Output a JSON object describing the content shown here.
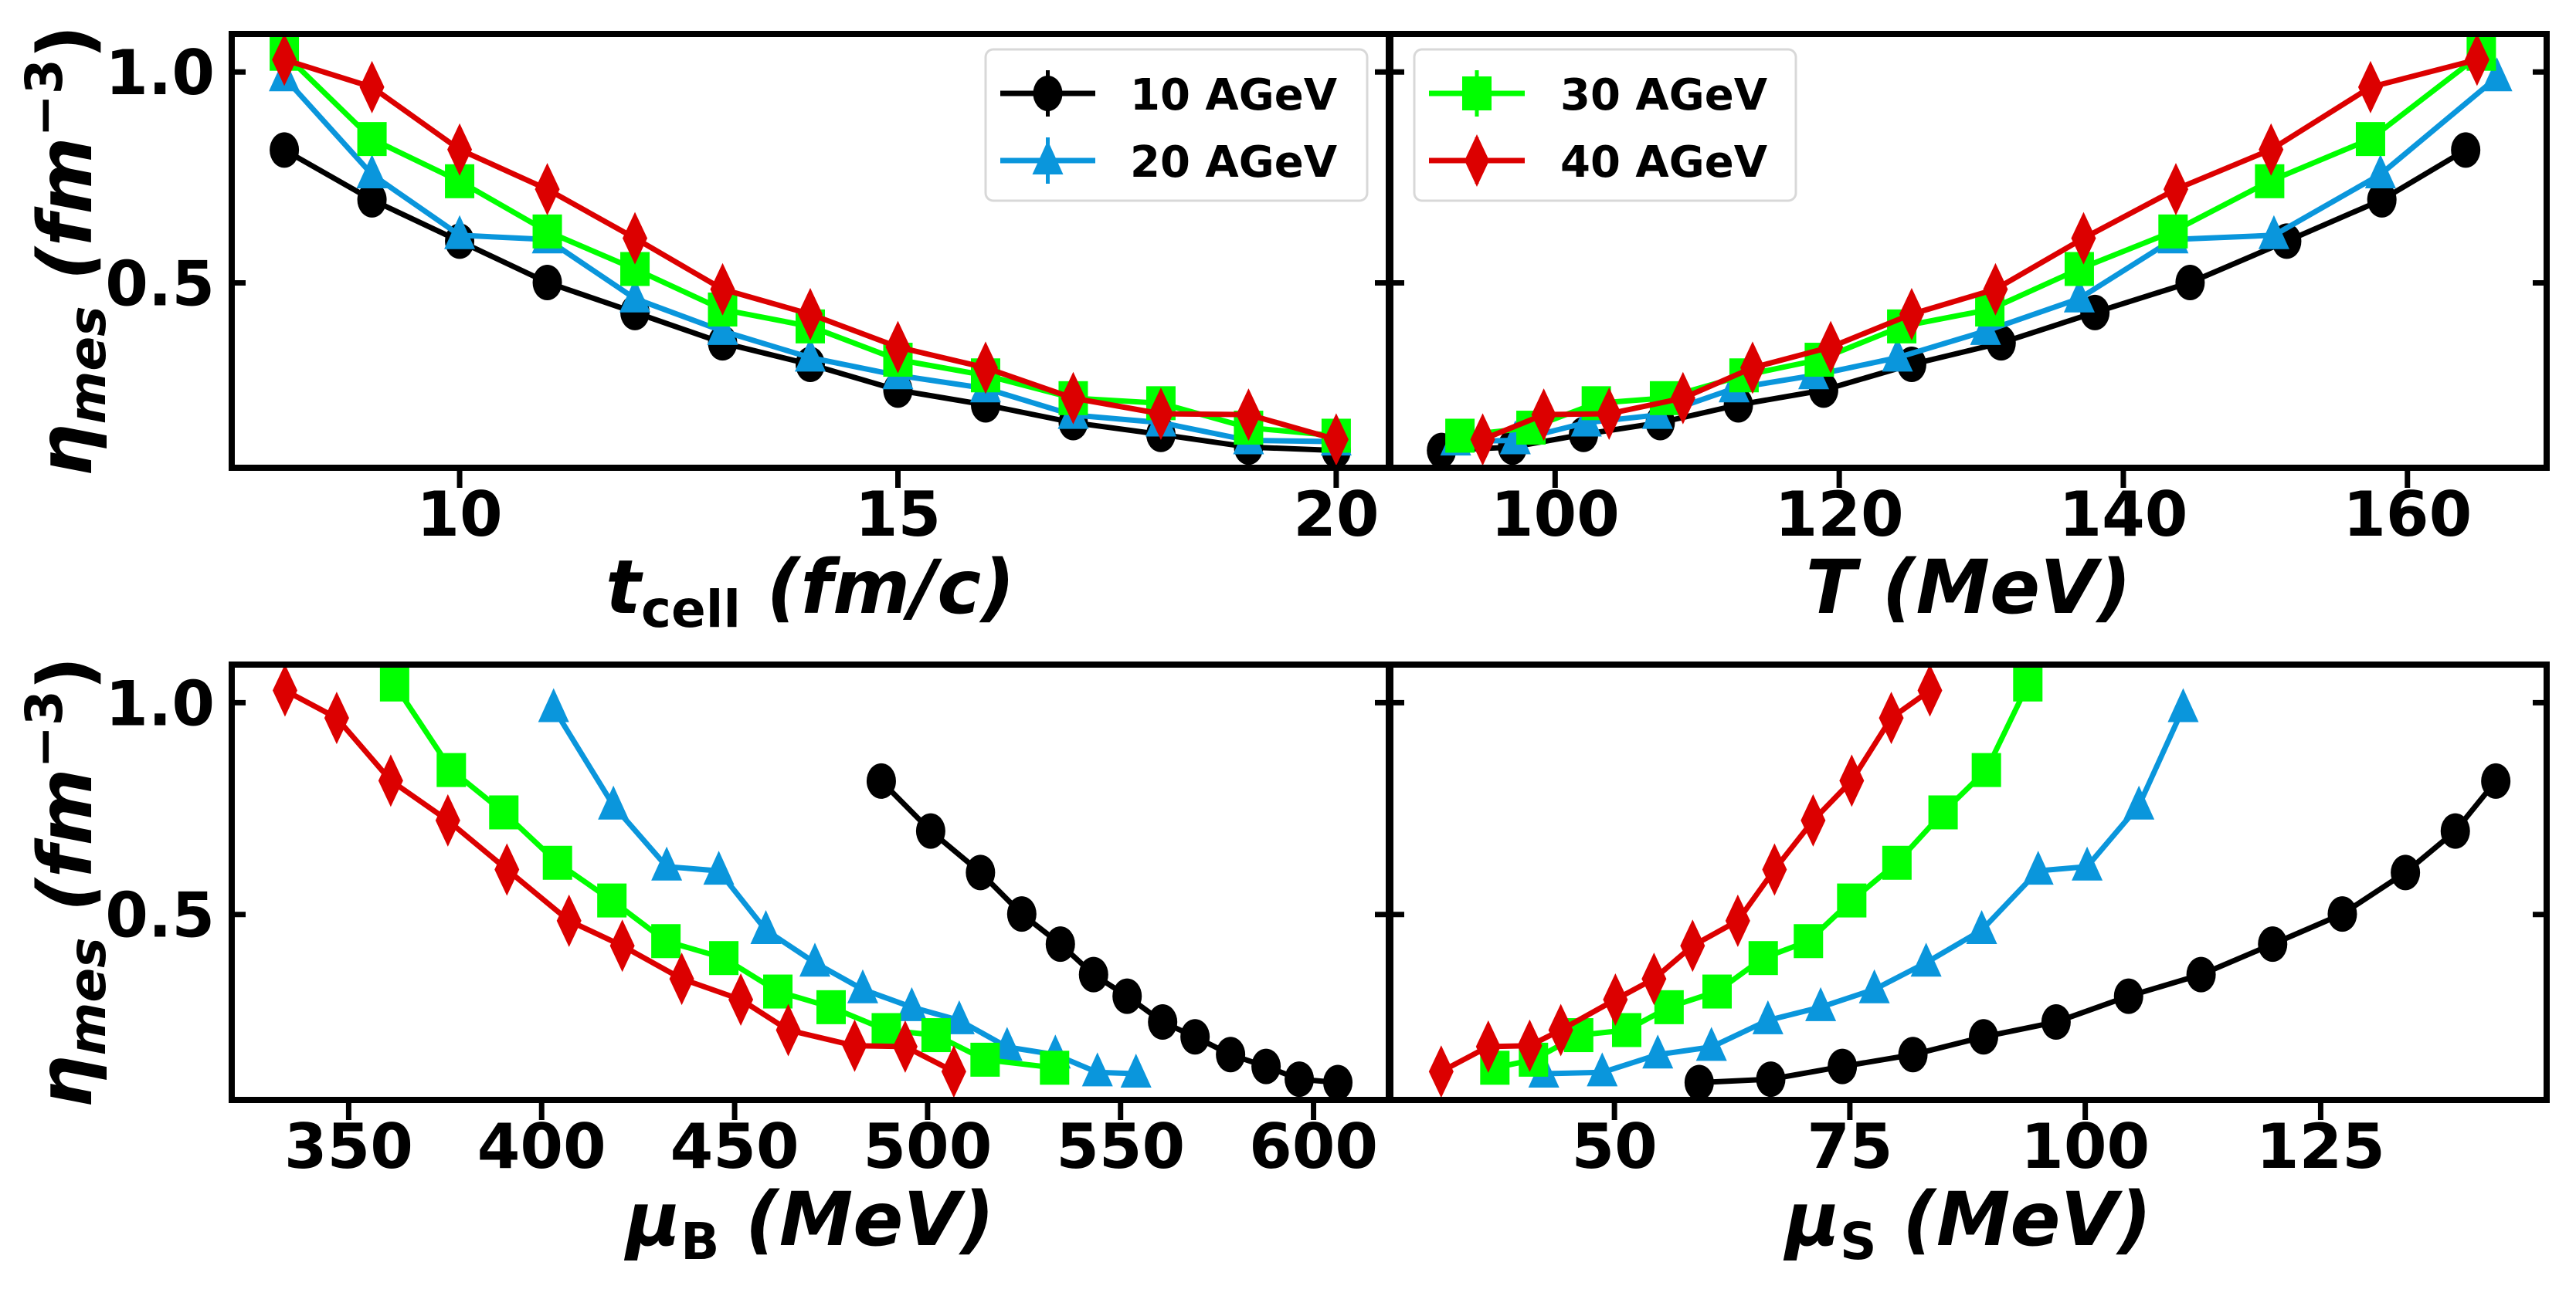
{
  "chart_data": {
    "type": "line",
    "layout": "2x2 panels",
    "title": "",
    "colors": {
      "10 AGeV": "#000000",
      "20 AGeV": "#0a96dc",
      "30 AGeV": "#00ff00",
      "40 AGeV": "#dc0000"
    },
    "markers": {
      "10 AGeV": "circle",
      "20 AGeV": "triangle",
      "30 AGeV": "square",
      "40 AGeV": "diamond"
    },
    "eta": {
      "10 AGeV": [
        0.815,
        0.697,
        0.599,
        0.501,
        0.43,
        0.358,
        0.307,
        0.246,
        0.211,
        0.169,
        0.141,
        0.111,
        0.103
      ],
      "20 AGeV": [
        0.987,
        0.757,
        0.613,
        0.603,
        0.463,
        0.386,
        0.323,
        0.281,
        0.25,
        0.187,
        0.169,
        0.127,
        0.124
      ],
      "30 AGeV": [
        1.043,
        0.841,
        0.741,
        0.622,
        0.533,
        0.437,
        0.397,
        0.318,
        0.281,
        0.227,
        0.215,
        0.157,
        0.138
      ],
      "40 AGeV": [
        1.029,
        0.964,
        0.816,
        0.722,
        0.606,
        0.485,
        0.426,
        0.348,
        0.299,
        0.227,
        0.19,
        0.188,
        0.129
      ]
    },
    "ylabel": {
      "symbol": "η",
      "sub": "mes",
      "open": " (fm",
      "sup": "−3",
      "close": ")"
    },
    "ylim": [
      0.062,
      1.09
    ],
    "yticks": [
      "0.5",
      "1.0"
    ],
    "panels": [
      {
        "id": "tcell",
        "xlabel": {
          "symbol": "t",
          "sub": "cell",
          "unit": " (fm/c)"
        },
        "xlim": [
          7.4,
          20.6
        ],
        "xticks": [
          "10",
          "15",
          "20"
        ],
        "legend": {
          "entries": [
            "10 AGeV",
            "20 AGeV"
          ],
          "placement": "top-right"
        },
        "x": {
          "10 AGeV": [
            8,
            9,
            10,
            11,
            12,
            13,
            14,
            15,
            16,
            17,
            18,
            19,
            20
          ],
          "20 AGeV": [
            8,
            9,
            10,
            11,
            12,
            13,
            14,
            15,
            16,
            17,
            18,
            19,
            20
          ],
          "30 AGeV": [
            8,
            9,
            10,
            11,
            12,
            13,
            14,
            15,
            16,
            17,
            18,
            19,
            20
          ],
          "40 AGeV": [
            8,
            9,
            10,
            11,
            12,
            13,
            14,
            15,
            16,
            17,
            18,
            19,
            20
          ]
        }
      },
      {
        "id": "temperature",
        "xlabel": {
          "symbol": "T",
          "sub": "",
          "unit": " (MeV)"
        },
        "xlim": [
          88.4,
          169.8
        ],
        "xticks": [
          "100",
          "120",
          "140",
          "160"
        ],
        "legend": {
          "entries": [
            "30 AGeV",
            "40 AGeV"
          ],
          "placement": "top-left"
        },
        "x": {
          "10 AGeV": [
            164.1,
            158.2,
            151.5,
            144.7,
            138.0,
            131.4,
            125.1,
            118.9,
            112.9,
            107.4,
            102.0,
            97.0,
            92.0
          ],
          "20 AGeV": [
            166.3,
            158.1,
            150.6,
            143.5,
            136.9,
            130.3,
            124.1,
            118.2,
            112.6,
            107.2,
            102.2,
            97.2,
            93.0
          ],
          "30 AGeV": [
            165.2,
            157.4,
            150.3,
            143.5,
            136.9,
            130.6,
            124.4,
            118.6,
            113.3,
            107.7,
            102.9,
            98.3,
            93.3
          ],
          "40 AGeV": [
            164.9,
            157.4,
            150.4,
            143.7,
            137.2,
            131.0,
            125.1,
            119.4,
            113.9,
            109.0,
            103.8,
            99.2,
            94.9
          ]
        }
      },
      {
        "id": "muB",
        "xlabel": {
          "symbol": "μ",
          "sub": "B",
          "unit": " (MeV)"
        },
        "xlim": [
          319.7,
          619.5
        ],
        "xticks": [
          "350",
          "400",
          "450",
          "500",
          "550",
          "600"
        ],
        "x": {
          "10 AGeV": [
            488.0,
            500.8,
            513.7,
            524.4,
            534.4,
            543.0,
            551.7,
            560.9,
            569.3,
            578.5,
            587.7,
            596.3,
            606.3
          ],
          "20 AGeV": [
            403.1,
            418.6,
            432.4,
            445.9,
            458.1,
            470.8,
            483.2,
            495.9,
            508.2,
            520.6,
            533.1,
            544.0,
            554.0
          ],
          "30 AGeV": [
            361.9,
            376.6,
            390.2,
            404.1,
            418.2,
            432.2,
            447.2,
            461.2,
            475.0,
            489.3,
            502.2,
            514.9,
            532.9
          ],
          "40 AGeV": [
            333.5,
            346.9,
            360.9,
            375.7,
            391.0,
            407.1,
            420.9,
            436.3,
            451.6,
            463.9,
            481.1,
            494.2,
            506.8
          ]
        }
      },
      {
        "id": "muS",
        "xlabel": {
          "symbol": "μ",
          "sub": "S",
          "unit": " (MeV)"
        },
        "xlim": [
          26.2,
          149.0
        ],
        "xticks": [
          "50",
          "75",
          "100",
          "125"
        ],
        "x": {
          "10 AGeV": [
            143.6,
            139.3,
            134.0,
            127.3,
            119.9,
            112.3,
            104.6,
            96.9,
            89.2,
            81.7,
            74.2,
            66.6,
            59.0
          ],
          "20 AGeV": [
            110.4,
            105.7,
            100.2,
            95.0,
            89.0,
            83.1,
            77.6,
            71.9,
            66.3,
            60.3,
            54.6,
            48.7,
            42.5
          ],
          "30 AGeV": [
            93.9,
            89.5,
            84.9,
            80.0,
            75.2,
            70.6,
            65.8,
            60.9,
            55.8,
            51.3,
            46.2,
            41.4,
            37.3
          ],
          "40 AGeV": [
            83.5,
            79.4,
            75.2,
            71.1,
            67.0,
            63.1,
            58.3,
            54.2,
            50.1,
            44.3,
            41.0,
            36.6,
            31.6
          ]
        }
      }
    ],
    "series_order": [
      "10 AGeV",
      "20 AGeV",
      "30 AGeV",
      "40 AGeV"
    ],
    "grid": false
  }
}
